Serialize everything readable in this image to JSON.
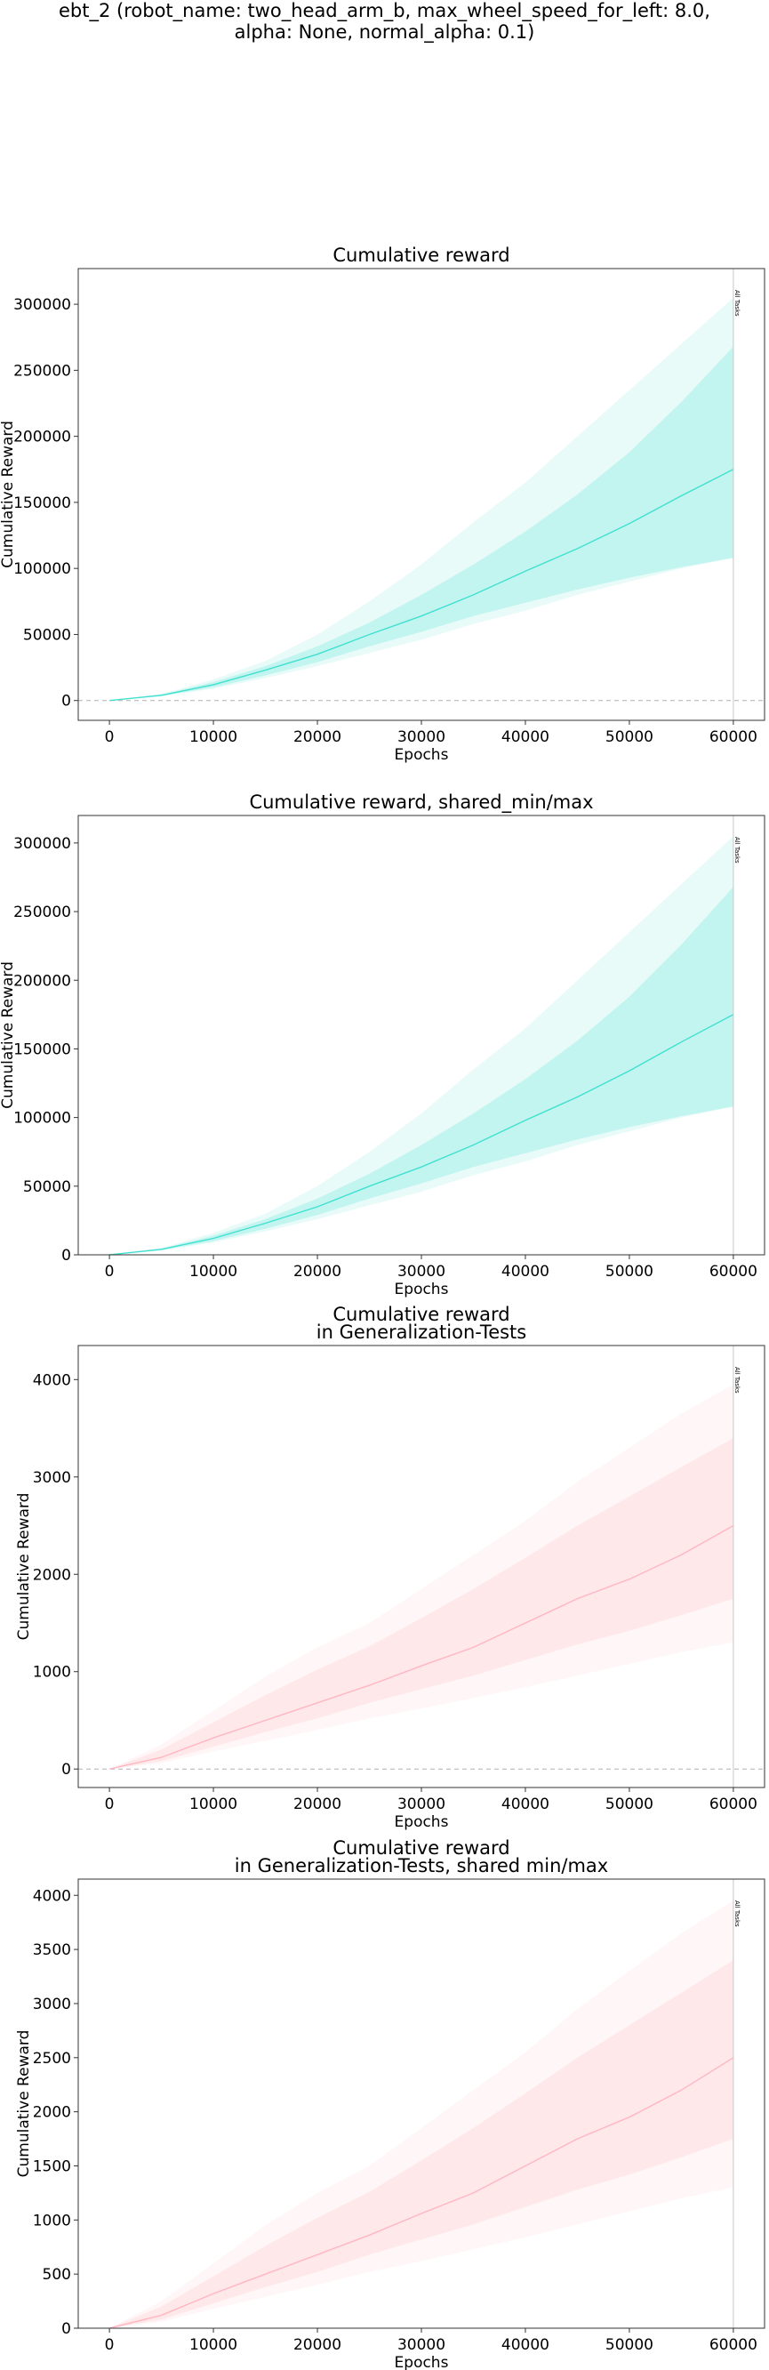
{
  "figure": {
    "suptitle_lines": [
      "ebt_2 (robot_name: two_head_arm_b, max_wheel_speed_for_left: 8.0,",
      "alpha: None, normal_alpha: 0.1)"
    ]
  },
  "chart_data": [
    {
      "type": "line",
      "title": [
        "Cumulative reward"
      ],
      "xlabel": "Epochs",
      "ylabel": "Cumulative Reward",
      "xlim": [
        -3000,
        63000
      ],
      "ylim": [
        -15000,
        327000
      ],
      "xticks": [
        0,
        10000,
        20000,
        30000,
        40000,
        50000,
        60000
      ],
      "yticks": [
        0,
        50000,
        100000,
        150000,
        200000,
        250000,
        300000
      ],
      "zero_line": true,
      "vline": {
        "x": 60000,
        "label": "All Tasks"
      },
      "series": [
        {
          "color": "#40e0d0",
          "x": [
            0,
            5000,
            10000,
            15000,
            20000,
            25000,
            30000,
            35000,
            40000,
            45000,
            50000,
            55000,
            60000
          ],
          "mean": [
            0,
            4000,
            12000,
            23000,
            35000,
            50000,
            64000,
            80000,
            98000,
            115000,
            134000,
            155000,
            175000
          ],
          "min": [
            0,
            3000,
            9000,
            17000,
            26000,
            36000,
            46000,
            58000,
            68000,
            80000,
            90000,
            100000,
            108000
          ],
          "max": [
            0,
            5000,
            16000,
            30000,
            50000,
            75000,
            103000,
            135000,
            165000,
            200000,
            235000,
            270000,
            305000
          ],
          "std_low": [
            0,
            3500,
            10000,
            19000,
            29000,
            41000,
            52000,
            64000,
            74000,
            84000,
            93000,
            101000,
            108000
          ],
          "std_high": [
            0,
            4500,
            14000,
            26000,
            41000,
            59000,
            80000,
            103000,
            128000,
            156000,
            188000,
            226000,
            268000
          ]
        }
      ]
    },
    {
      "type": "line",
      "title": [
        "Cumulative reward, shared_min/max"
      ],
      "xlabel": "Epochs",
      "ylabel": "Cumulative Reward",
      "xlim": [
        -3000,
        63000
      ],
      "ylim": [
        0,
        320000
      ],
      "xticks": [
        0,
        10000,
        20000,
        30000,
        40000,
        50000,
        60000
      ],
      "yticks": [
        0,
        50000,
        100000,
        150000,
        200000,
        250000,
        300000
      ],
      "zero_line": false,
      "vline": {
        "x": 60000,
        "label": "All Tasks"
      },
      "series": [
        {
          "color": "#40e0d0",
          "x": [
            0,
            5000,
            10000,
            15000,
            20000,
            25000,
            30000,
            35000,
            40000,
            45000,
            50000,
            55000,
            60000
          ],
          "mean": [
            0,
            4000,
            12000,
            23000,
            35000,
            50000,
            64000,
            80000,
            98000,
            115000,
            134000,
            155000,
            175000
          ],
          "min": [
            0,
            3000,
            9000,
            17000,
            26000,
            36000,
            46000,
            58000,
            68000,
            80000,
            90000,
            100000,
            108000
          ],
          "max": [
            0,
            5000,
            16000,
            30000,
            50000,
            75000,
            103000,
            135000,
            165000,
            200000,
            235000,
            270000,
            305000
          ],
          "std_low": [
            0,
            3500,
            10000,
            19000,
            29000,
            41000,
            52000,
            64000,
            74000,
            84000,
            93000,
            101000,
            108000
          ],
          "std_high": [
            0,
            4500,
            14000,
            26000,
            41000,
            59000,
            80000,
            103000,
            128000,
            156000,
            188000,
            226000,
            268000
          ]
        }
      ]
    },
    {
      "type": "line",
      "title": [
        "Cumulative reward",
        "in Generalization-Tests"
      ],
      "xlabel": "Epochs",
      "ylabel": "Cumulative Reward",
      "xlim": [
        -3000,
        63000
      ],
      "ylim": [
        -190,
        4350
      ],
      "xticks": [
        0,
        10000,
        20000,
        30000,
        40000,
        50000,
        60000
      ],
      "yticks": [
        0,
        1000,
        2000,
        3000,
        4000
      ],
      "zero_line": true,
      "vline": {
        "x": 60000,
        "label": "All Tasks"
      },
      "series": [
        {
          "color": "#ffb6c1",
          "x": [
            0,
            5000,
            10000,
            15000,
            20000,
            25000,
            30000,
            35000,
            40000,
            45000,
            50000,
            55000,
            60000
          ],
          "mean": [
            0,
            120,
            320,
            500,
            680,
            860,
            1060,
            1250,
            1500,
            1750,
            1950,
            2200,
            2500
          ],
          "min": [
            0,
            60,
            180,
            290,
            400,
            520,
            620,
            730,
            840,
            960,
            1080,
            1200,
            1300
          ],
          "max": [
            0,
            250,
            600,
            950,
            1250,
            1500,
            1850,
            2200,
            2550,
            2950,
            3300,
            3650,
            3950
          ],
          "std_low": [
            0,
            80,
            230,
            380,
            520,
            680,
            820,
            960,
            1120,
            1280,
            1420,
            1580,
            1750
          ],
          "std_high": [
            0,
            200,
            480,
            760,
            1020,
            1260,
            1550,
            1850,
            2170,
            2500,
            2800,
            3100,
            3400
          ]
        }
      ]
    },
    {
      "type": "line",
      "title": [
        "Cumulative reward",
        "in Generalization-Tests, shared min/max"
      ],
      "xlabel": "Epochs",
      "ylabel": "Cumulative Reward",
      "xlim": [
        -3000,
        63000
      ],
      "ylim": [
        0,
        4150
      ],
      "xticks": [
        0,
        10000,
        20000,
        30000,
        40000,
        50000,
        60000
      ],
      "yticks": [
        0,
        500,
        1000,
        1500,
        2000,
        2500,
        3000,
        3500,
        4000
      ],
      "zero_line": false,
      "vline": {
        "x": 60000,
        "label": "All Tasks"
      },
      "series": [
        {
          "color": "#ffb6c1",
          "x": [
            0,
            5000,
            10000,
            15000,
            20000,
            25000,
            30000,
            35000,
            40000,
            45000,
            50000,
            55000,
            60000
          ],
          "mean": [
            0,
            120,
            320,
            500,
            680,
            860,
            1060,
            1250,
            1500,
            1750,
            1950,
            2200,
            2500
          ],
          "min": [
            0,
            60,
            180,
            290,
            400,
            520,
            620,
            730,
            840,
            960,
            1080,
            1200,
            1300
          ],
          "max": [
            0,
            250,
            600,
            950,
            1250,
            1500,
            1850,
            2200,
            2550,
            2950,
            3300,
            3650,
            3950
          ],
          "std_low": [
            0,
            80,
            230,
            380,
            520,
            680,
            820,
            960,
            1120,
            1280,
            1420,
            1580,
            1750
          ],
          "std_high": [
            0,
            200,
            480,
            760,
            1020,
            1260,
            1550,
            1850,
            2170,
            2500,
            2800,
            3100,
            3400
          ]
        }
      ]
    }
  ]
}
